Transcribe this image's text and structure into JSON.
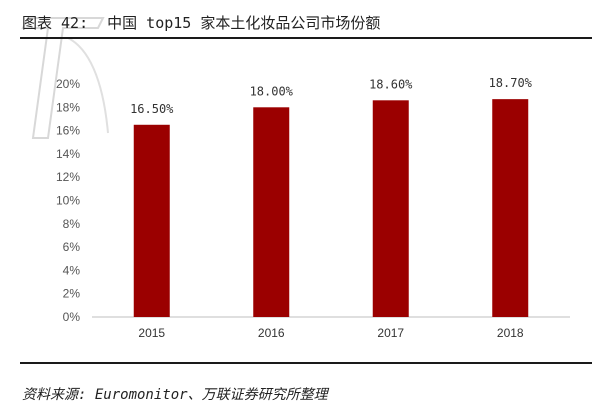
{
  "header": {
    "figure_label": "图表 42:",
    "title": "中国 top15 家本土化妆品公司市场份额"
  },
  "source": "资料来源: Euromonitor、万联证券研究所整理",
  "chart_data": {
    "type": "bar",
    "categories": [
      "2015",
      "2016",
      "2017",
      "2018"
    ],
    "values": [
      16.5,
      18.0,
      18.6,
      18.7
    ],
    "data_labels": [
      "16.50%",
      "18.00%",
      "18.60%",
      "18.70%"
    ],
    "ylim": [
      0,
      20
    ],
    "yticks": [
      "0%",
      "2%",
      "4%",
      "6%",
      "8%",
      "10%",
      "12%",
      "14%",
      "16%",
      "18%",
      "20%"
    ],
    "bar_color": "#9b0000",
    "grid": false,
    "title": "",
    "xlabel": "",
    "ylabel": ""
  }
}
